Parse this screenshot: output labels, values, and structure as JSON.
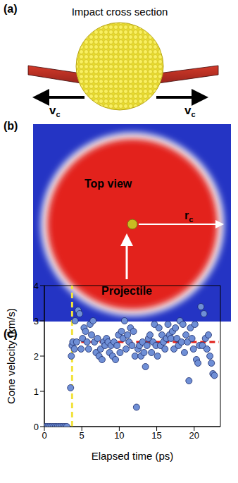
{
  "panel_a": {
    "label": "(a)",
    "title": "Impact cross section",
    "arrow_label": "v",
    "arrow_label_subscript": "c"
  },
  "panel_b": {
    "label": "(b)",
    "view_label": "Top view",
    "radius_label": "r",
    "radius_label_subscript": "c",
    "projectile_label": "Projectile"
  },
  "chart_data": {
    "panel_label": "(c)",
    "type": "scatter",
    "x_label": "Elapsed time (ps)",
    "y_label": "Cone velocity (km/s)",
    "xlim": [
      0,
      23.5
    ],
    "ylim": [
      0,
      4
    ],
    "xticks": [
      0,
      5,
      10,
      15,
      20
    ],
    "yticks": [
      0,
      1,
      2,
      3,
      4
    ],
    "grid": false,
    "color": "#6f8fd6",
    "marker": "circle",
    "x": [
      0,
      0.25,
      0.5,
      0.75,
      1.0,
      1.25,
      1.5,
      1.75,
      2.0,
      2.25,
      2.5,
      2.75,
      3.0,
      3.5,
      3.6,
      3.7,
      3.8,
      4.0,
      4.1,
      4.3,
      4.5,
      4.7,
      4.9,
      5.1,
      5.3,
      5.5,
      5.7,
      5.9,
      6.1,
      6.3,
      6.5,
      6.7,
      6.9,
      7.1,
      7.3,
      7.5,
      7.7,
      7.9,
      8.1,
      8.3,
      8.5,
      8.7,
      8.9,
      9.1,
      9.3,
      9.5,
      9.7,
      9.9,
      10.1,
      10.3,
      10.5,
      10.7,
      10.9,
      11.1,
      11.3,
      11.5,
      11.7,
      11.9,
      12.1,
      12.3,
      12.5,
      12.7,
      12.9,
      13.1,
      13.3,
      13.5,
      13.7,
      13.9,
      14.1,
      14.3,
      14.5,
      14.7,
      14.9,
      15.1,
      15.3,
      15.5,
      15.7,
      15.9,
      16.1,
      16.3,
      16.5,
      16.7,
      16.9,
      17.1,
      17.3,
      17.5,
      17.7,
      17.9,
      18.1,
      18.3,
      18.5,
      18.7,
      18.9,
      19.1,
      19.3,
      19.5,
      19.7,
      19.9,
      20.1,
      20.3,
      20.5,
      20.7,
      20.9,
      21.1,
      21.3,
      21.5,
      21.7,
      21.9,
      22.1,
      22.3,
      22.5,
      22.7
    ],
    "values": [
      0,
      0,
      0,
      0,
      0,
      0,
      0,
      0,
      0,
      0,
      0,
      0,
      0,
      1.1,
      2.0,
      2.3,
      2.4,
      2.2,
      3.0,
      2.4,
      3.3,
      3.2,
      2.2,
      2.5,
      2.8,
      2.7,
      2.4,
      2.2,
      2.9,
      2.6,
      3.0,
      2.4,
      2.1,
      2.5,
      2.0,
      2.2,
      1.9,
      2.4,
      2.3,
      2.5,
      2.4,
      2.1,
      2.3,
      2.0,
      2.4,
      1.9,
      2.3,
      2.6,
      2.1,
      2.7,
      2.5,
      3.0,
      2.2,
      2.6,
      2.4,
      2.8,
      2.3,
      2.7,
      2.0,
      0.55,
      2.2,
      2.3,
      2.0,
      2.4,
      2.1,
      1.7,
      2.3,
      2.5,
      2.6,
      2.1,
      2.4,
      2.9,
      2.3,
      2.0,
      2.8,
      2.3,
      2.6,
      2.4,
      2.2,
      2.5,
      2.9,
      2.6,
      2.5,
      2.7,
      2.2,
      2.8,
      2.5,
      2.3,
      3.0,
      2.4,
      2.9,
      2.1,
      2.6,
      2.4,
      1.3,
      2.8,
      2.5,
      2.2,
      2.9,
      1.9,
      1.8,
      2.3,
      3.4,
      2.3,
      3.2,
      2.5,
      2.2,
      2.6,
      2.0,
      1.8,
      1.5,
      1.45
    ],
    "reference_lines": [
      {
        "axis": "x",
        "value": 3.7,
        "color": "#f2e23c",
        "line_style": "dashed"
      },
      {
        "axis": "y",
        "value": 2.4,
        "color": "#e0201b",
        "line_style": "dashed",
        "x_range": [
          3.7,
          23.3
        ]
      }
    ]
  }
}
